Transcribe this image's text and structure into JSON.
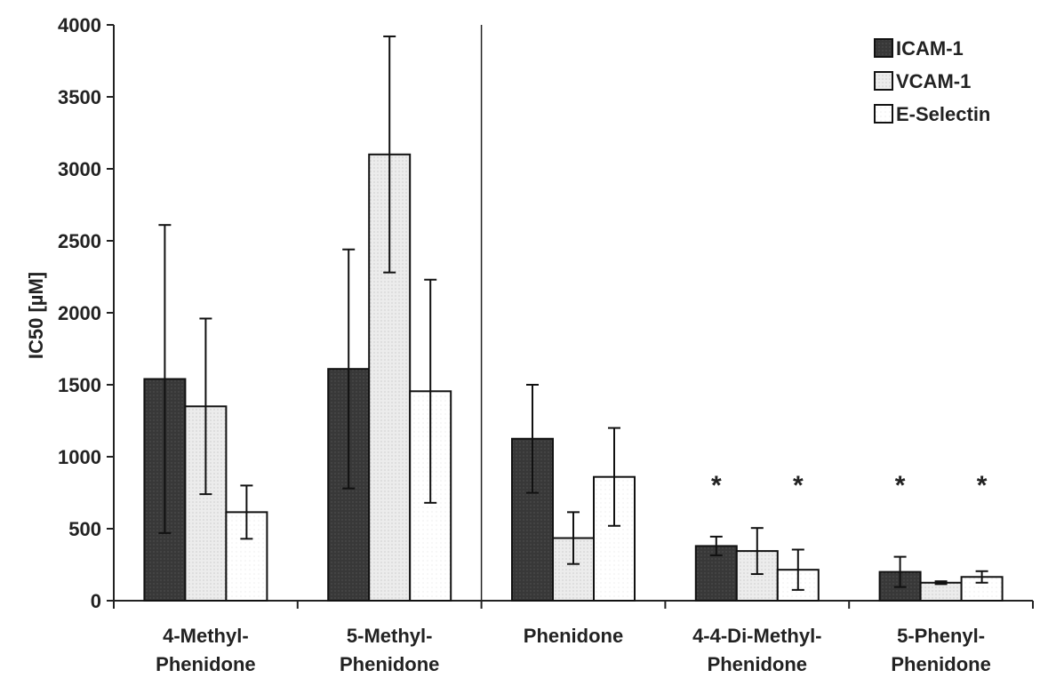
{
  "chart_data": {
    "type": "bar",
    "title": "",
    "xlabel": "",
    "ylabel": "IC50 [µM]",
    "ylim": [
      0,
      4000
    ],
    "yticks": [
      0,
      500,
      1000,
      1500,
      2000,
      2500,
      3000,
      3500,
      4000
    ],
    "categories": [
      [
        "4-Methyl-",
        "Phenidone"
      ],
      [
        "5-Methyl-",
        "Phenidone"
      ],
      [
        "Phenidone"
      ],
      [
        "4-4-Di-Methyl-",
        "Phenidone"
      ],
      [
        "5-Phenyl-",
        "Phenidone"
      ]
    ],
    "legend_position": "top-right",
    "divider_after_category": 2,
    "series": [
      {
        "name": "ICAM-1",
        "color": "#3a3a3a",
        "values": [
          1540,
          1610,
          1125,
          380,
          200
        ],
        "error": [
          1070,
          830,
          375,
          65,
          105
        ]
      },
      {
        "name": "VCAM-1",
        "color": "#e6e6e6",
        "values": [
          1350,
          3100,
          435,
          345,
          125
        ],
        "error": [
          610,
          820,
          180,
          160,
          10
        ]
      },
      {
        "name": "E-Selectin",
        "color": "#ffffff",
        "values": [
          615,
          1455,
          860,
          215,
          165
        ],
        "error": [
          185,
          775,
          340,
          140,
          40
        ]
      }
    ],
    "annotations": [
      {
        "text": "*",
        "category": 3,
        "series": 0,
        "y": 840
      },
      {
        "text": "*",
        "category": 3,
        "series": 2,
        "y": 840
      },
      {
        "text": "*",
        "category": 4,
        "series": 0,
        "y": 840
      },
      {
        "text": "*",
        "category": 4,
        "series": 2,
        "y": 840
      }
    ]
  }
}
